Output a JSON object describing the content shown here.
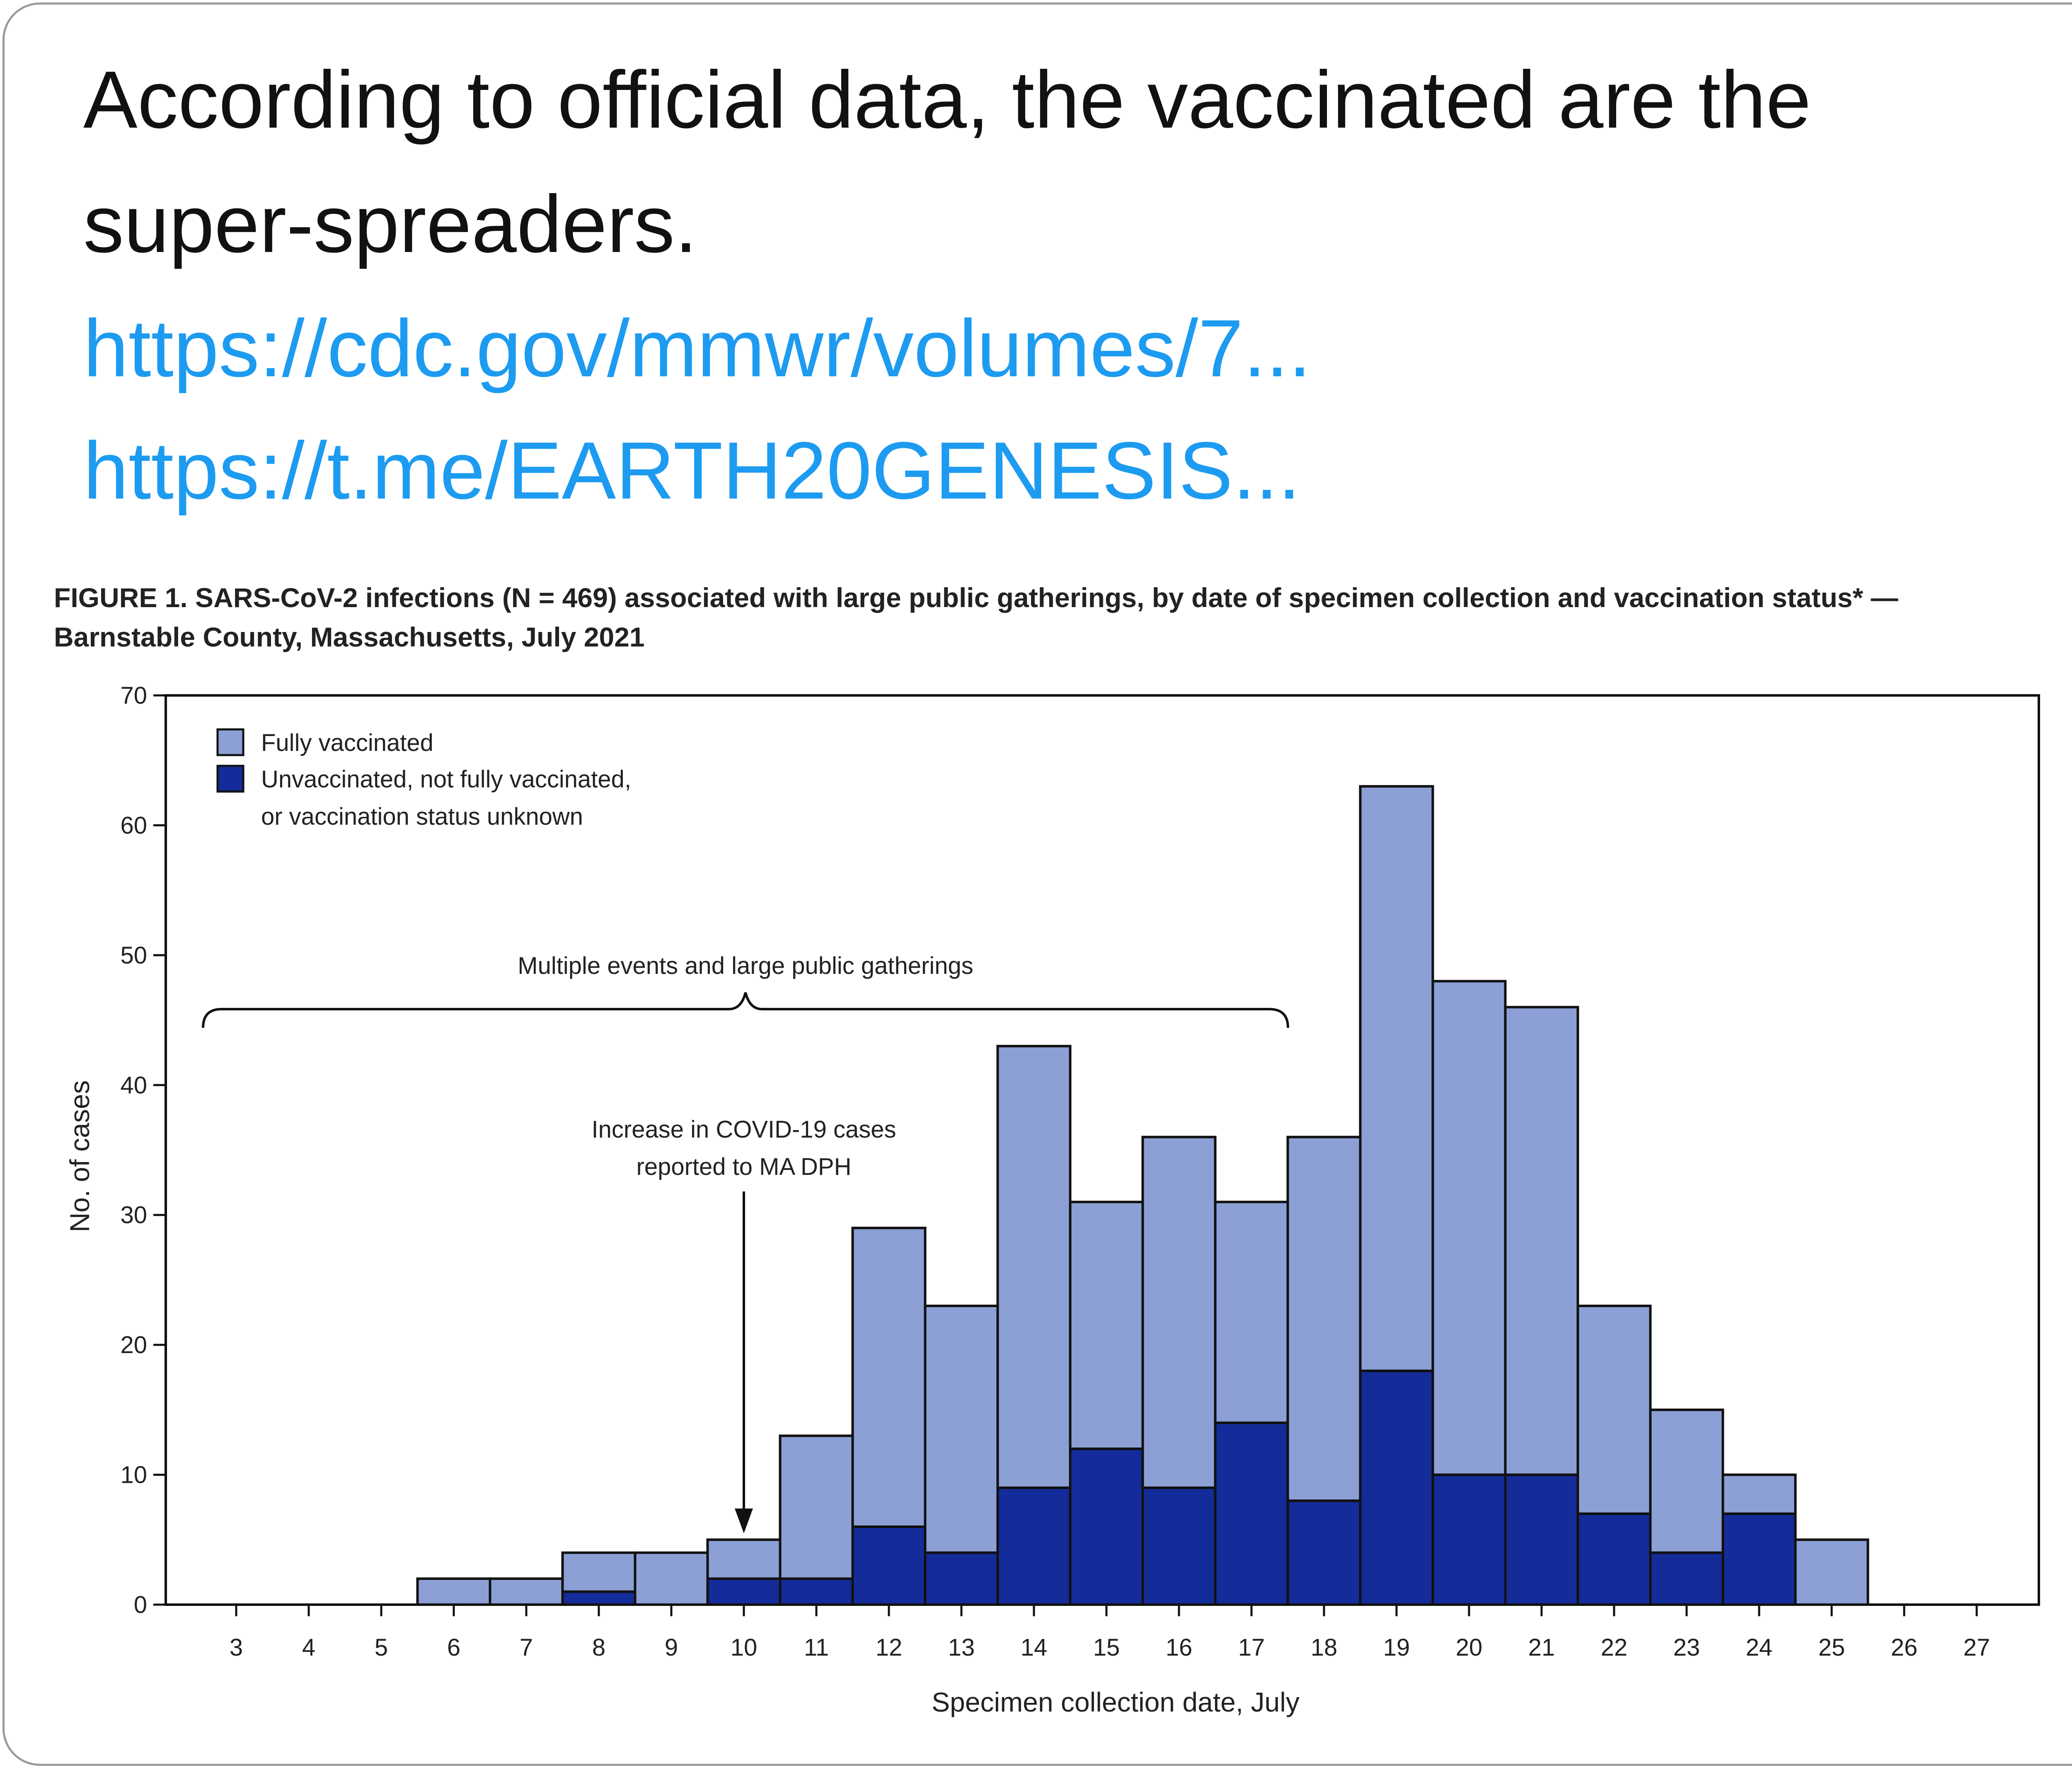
{
  "post": {
    "text_line1": "According to official data, the vaccinated are the",
    "text_line2": "super-spreaders.",
    "link1": "https://cdc.gov/mmwr/volumes/7...",
    "link2": "https://t.me/EARTH20GENESIS...",
    "link_color": "#1d9bf0"
  },
  "chart_data": {
    "type": "bar",
    "stacked": true,
    "title_line1": "FIGURE 1. SARS-CoV-2 infections (N = 469) associated with large public gatherings, by date of specimen collection and vaccination status* —",
    "title_line2": "Barnstable County, Massachusetts, July 2021",
    "xlabel": "Specimen collection date, July",
    "ylabel": "No. of cases",
    "ylim": [
      0,
      70
    ],
    "yticks": [
      0,
      10,
      20,
      30,
      40,
      50,
      60,
      70
    ],
    "categories": [
      "3",
      "4",
      "5",
      "6",
      "7",
      "8",
      "9",
      "10",
      "11",
      "12",
      "13",
      "14",
      "15",
      "16",
      "17",
      "18",
      "19",
      "20",
      "21",
      "22",
      "23",
      "24",
      "25",
      "26",
      "27"
    ],
    "series": [
      {
        "name": "Unvaccinated, not fully vaccinated, or vaccination status unknown",
        "legend_line1": "Unvaccinated, not fully vaccinated,",
        "legend_line2": "or vaccination status unknown",
        "color": "#142c99",
        "values": [
          0,
          0,
          0,
          0,
          0,
          1,
          0,
          2,
          2,
          6,
          4,
          9,
          12,
          9,
          14,
          8,
          18,
          10,
          10,
          7,
          4,
          7,
          0,
          0,
          0
        ]
      },
      {
        "name": "Fully vaccinated",
        "color": "#8ca0d6",
        "values": [
          0,
          0,
          0,
          2,
          2,
          3,
          4,
          3,
          11,
          23,
          19,
          34,
          19,
          27,
          17,
          28,
          45,
          38,
          36,
          16,
          11,
          3,
          5,
          0,
          0
        ]
      }
    ],
    "annotations": {
      "brace_label": "Multiple events and large public gatherings",
      "brace_from": "3",
      "brace_to": "17",
      "arrow_label_line1": "Increase in COVID-19 cases",
      "arrow_label_line2": "reported to MA DPH",
      "arrow_at": "10"
    },
    "grid": false,
    "legend_position": "top-left"
  }
}
